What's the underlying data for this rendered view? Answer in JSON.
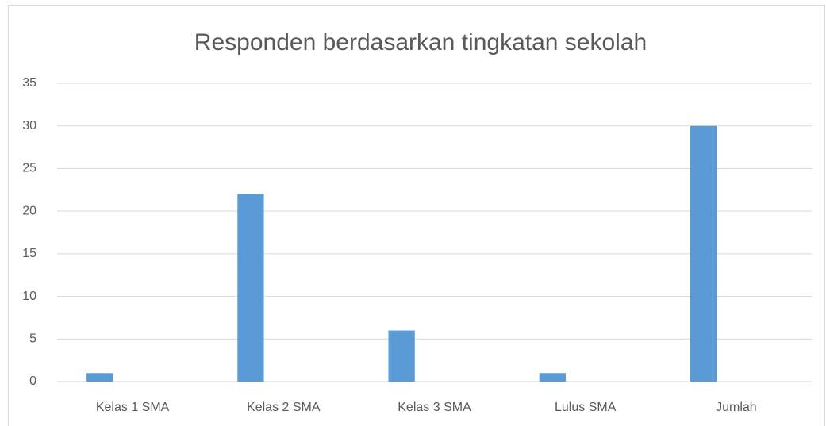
{
  "chart_data": {
    "type": "bar",
    "title": "Responden berdasarkan tingkatan sekolah",
    "categories": [
      "Kelas 1 SMA",
      "Kelas 2 SMA",
      "Kelas 3 SMA",
      "Lulus SMA",
      "Jumlah"
    ],
    "values": [
      1,
      22,
      6,
      1,
      30
    ],
    "color": "#5b9bd5",
    "ylim": [
      0,
      35
    ],
    "yticks": [
      0,
      5,
      10,
      15,
      20,
      25,
      30,
      35
    ],
    "grid": true
  }
}
